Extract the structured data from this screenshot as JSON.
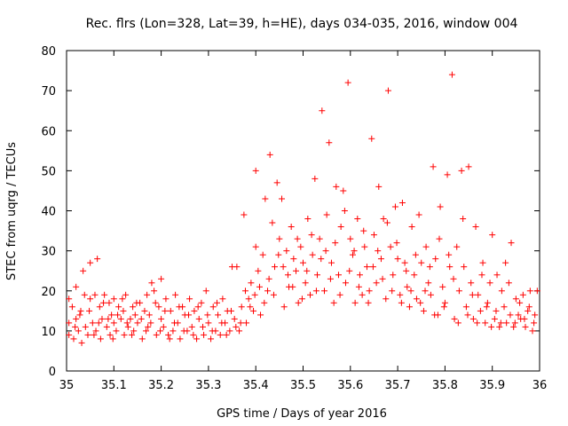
{
  "chart_data": {
    "type": "scatter",
    "title": "Rec. flrs (Lon=328, Lat=39, h=HE), days 034-035, 2016, window 004",
    "xlabel": "GPS time / Days of year 2016",
    "ylabel": "STEC from uqrg / TECUs",
    "xlim": [
      35,
      36
    ],
    "ylim": [
      0,
      80
    ],
    "xticks": [
      35,
      35.1,
      35.2,
      35.3,
      35.4,
      35.5,
      35.6,
      35.7,
      35.8,
      35.9,
      36
    ],
    "xtick_labels": [
      "35",
      "35.1",
      "35.2",
      "35.3",
      "35.4",
      "35.5",
      "35.6",
      "35.7",
      "35.8",
      "35.9",
      "36"
    ],
    "yticks": [
      0,
      10,
      20,
      30,
      40,
      50,
      60,
      70,
      80
    ],
    "ytick_labels": [
      "0",
      "10",
      "20",
      "30",
      "40",
      "50",
      "60",
      "70",
      "80"
    ],
    "marker": "plus",
    "color": "#ff0000",
    "grid": false,
    "series": [
      {
        "points": [
          [
            35.005,
            18
          ],
          [
            35.005,
            12
          ],
          [
            35.005,
            9
          ],
          [
            35.012,
            16
          ],
          [
            35.015,
            8
          ],
          [
            35.02,
            21
          ],
          [
            35.02,
            13
          ],
          [
            35.025,
            10
          ],
          [
            35.03,
            15
          ],
          [
            35.032,
            7
          ],
          [
            35.035,
            25
          ],
          [
            35.038,
            19
          ],
          [
            35.04,
            11
          ],
          [
            35.045,
            9
          ],
          [
            35.05,
            27
          ],
          [
            35.05,
            18
          ],
          [
            35.055,
            12
          ],
          [
            35.06,
            19
          ],
          [
            35.062,
            10
          ],
          [
            35.065,
            28
          ],
          [
            35.07,
            16
          ],
          [
            35.072,
            8
          ],
          [
            35.075,
            13
          ],
          [
            35.08,
            19
          ],
          [
            35.085,
            11
          ],
          [
            35.09,
            17
          ],
          [
            35.092,
            9
          ],
          [
            35.095,
            14
          ],
          [
            35.1,
            12
          ],
          [
            35.1,
            18
          ],
          [
            35.105,
            10
          ],
          [
            35.11,
            16
          ],
          [
            35.115,
            13
          ],
          [
            35.12,
            15
          ],
          [
            35.122,
            9
          ],
          [
            35.125,
            19
          ],
          [
            35.13,
            11
          ],
          [
            35.135,
            13
          ],
          [
            35.14,
            16
          ],
          [
            35.142,
            10
          ],
          [
            35.145,
            14
          ],
          [
            35.15,
            12
          ],
          [
            35.155,
            17
          ],
          [
            35.16,
            8
          ],
          [
            35.165,
            15
          ],
          [
            35.17,
            19
          ],
          [
            35.172,
            11
          ],
          [
            35.175,
            14
          ],
          [
            35.18,
            22
          ],
          [
            35.185,
            20
          ],
          [
            35.19,
            9
          ],
          [
            35.195,
            16
          ],
          [
            35.2,
            23
          ],
          [
            35.2,
            13
          ],
          [
            35.205,
            11
          ],
          [
            35.21,
            18
          ],
          [
            35.215,
            9
          ],
          [
            35.22,
            15
          ],
          [
            35.225,
            10
          ],
          [
            35.23,
            19
          ],
          [
            35.235,
            12
          ],
          [
            35.24,
            8
          ],
          [
            35.245,
            16
          ],
          [
            35.25,
            14
          ],
          [
            35.255,
            10
          ],
          [
            35.26,
            18
          ],
          [
            35.265,
            11
          ],
          [
            35.27,
            15
          ],
          [
            35.275,
            8
          ],
          [
            35.28,
            13
          ],
          [
            35.285,
            17
          ],
          [
            35.29,
            9
          ],
          [
            35.295,
            20
          ],
          [
            35.3,
            12
          ],
          [
            35.305,
            8
          ],
          [
            35.31,
            16
          ],
          [
            35.315,
            10
          ],
          [
            35.32,
            14
          ],
          [
            35.325,
            9
          ],
          [
            35.33,
            18
          ],
          [
            35.335,
            12
          ],
          [
            35.34,
            15
          ],
          [
            35.345,
            10
          ],
          [
            35.35,
            26
          ],
          [
            35.355,
            13
          ],
          [
            35.36,
            26
          ],
          [
            35.365,
            10
          ],
          [
            35.37,
            16
          ],
          [
            35.375,
            39
          ],
          [
            35.38,
            12
          ],
          [
            35.385,
            18
          ],
          [
            35.39,
            22
          ],
          [
            35.395,
            15
          ],
          [
            35.4,
            31
          ],
          [
            35.4,
            50
          ],
          [
            35.405,
            25
          ],
          [
            35.41,
            14
          ],
          [
            35.415,
            29
          ],
          [
            35.42,
            43
          ],
          [
            35.425,
            20
          ],
          [
            35.43,
            54
          ],
          [
            35.435,
            37
          ],
          [
            35.44,
            26
          ],
          [
            35.445,
            47
          ],
          [
            35.45,
            33
          ],
          [
            35.455,
            43
          ],
          [
            35.46,
            16
          ],
          [
            35.465,
            30
          ],
          [
            35.47,
            21
          ],
          [
            35.475,
            36
          ],
          [
            35.48,
            28
          ],
          [
            35.485,
            25
          ],
          [
            35.49,
            17
          ],
          [
            35.495,
            31
          ],
          [
            35.5,
            27
          ],
          [
            35.505,
            22
          ],
          [
            35.51,
            38
          ],
          [
            35.515,
            19
          ],
          [
            35.52,
            29
          ],
          [
            35.525,
            48
          ],
          [
            35.53,
            24
          ],
          [
            35.535,
            33
          ],
          [
            35.54,
            65
          ],
          [
            35.545,
            20
          ],
          [
            35.55,
            39
          ],
          [
            35.555,
            57
          ],
          [
            35.56,
            27
          ],
          [
            35.565,
            17
          ],
          [
            35.57,
            46
          ],
          [
            35.575,
            24
          ],
          [
            35.58,
            36
          ],
          [
            35.585,
            45
          ],
          [
            35.59,
            22
          ],
          [
            35.595,
            72
          ],
          [
            35.6,
            33
          ],
          [
            35.605,
            29
          ],
          [
            35.61,
            17
          ],
          [
            35.615,
            38
          ],
          [
            35.62,
            24
          ],
          [
            35.625,
            19
          ],
          [
            35.63,
            31
          ],
          [
            35.635,
            26
          ],
          [
            35.64,
            20
          ],
          [
            35.645,
            58
          ],
          [
            35.65,
            34
          ],
          [
            35.655,
            22
          ],
          [
            35.66,
            46
          ],
          [
            35.665,
            28
          ],
          [
            35.67,
            38
          ],
          [
            35.675,
            18
          ],
          [
            35.68,
            70
          ],
          [
            35.685,
            31
          ],
          [
            35.69,
            24
          ],
          [
            35.695,
            41
          ],
          [
            35.7,
            28
          ],
          [
            35.705,
            19
          ],
          [
            35.71,
            42
          ],
          [
            35.715,
            27
          ],
          [
            35.72,
            21
          ],
          [
            35.725,
            16
          ],
          [
            35.73,
            36
          ],
          [
            35.735,
            24
          ],
          [
            35.74,
            18
          ],
          [
            35.745,
            39
          ],
          [
            35.75,
            27
          ],
          [
            35.755,
            15
          ],
          [
            35.76,
            31
          ],
          [
            35.765,
            22
          ],
          [
            35.77,
            19
          ],
          [
            35.775,
            51
          ],
          [
            35.78,
            28
          ],
          [
            35.785,
            14
          ],
          [
            35.79,
            41
          ],
          [
            35.795,
            21
          ],
          [
            35.8,
            17
          ],
          [
            35.805,
            49
          ],
          [
            35.81,
            26
          ],
          [
            35.815,
            74
          ],
          [
            35.82,
            13
          ],
          [
            35.825,
            31
          ],
          [
            35.83,
            20
          ],
          [
            35.835,
            50
          ],
          [
            35.84,
            26
          ],
          [
            35.845,
            16
          ],
          [
            35.85,
            51
          ],
          [
            35.855,
            22
          ],
          [
            35.86,
            13
          ],
          [
            35.865,
            36
          ],
          [
            35.87,
            19
          ],
          [
            35.875,
            15
          ],
          [
            35.88,
            27
          ],
          [
            35.885,
            12
          ],
          [
            35.89,
            17
          ],
          [
            35.895,
            22
          ],
          [
            35.9,
            34
          ],
          [
            35.905,
            13
          ],
          [
            35.91,
            24
          ],
          [
            35.915,
            11
          ],
          [
            35.92,
            20
          ],
          [
            35.925,
            16
          ],
          [
            35.93,
            12
          ],
          [
            35.935,
            22
          ],
          [
            35.94,
            32
          ],
          [
            35.945,
            11
          ],
          [
            35.95,
            18
          ],
          [
            35.955,
            14
          ],
          [
            35.96,
            13
          ],
          [
            35.965,
            19
          ],
          [
            35.97,
            11
          ],
          [
            35.975,
            15
          ],
          [
            35.98,
            20
          ],
          [
            35.985,
            10
          ],
          [
            35.99,
            14
          ],
          [
            35.995,
            20
          ],
          [
            35.018,
            11
          ],
          [
            35.028,
            14
          ],
          [
            35.048,
            15
          ],
          [
            35.058,
            9
          ],
          [
            35.068,
            12
          ],
          [
            35.078,
            17
          ],
          [
            35.088,
            13
          ],
          [
            35.098,
            8
          ],
          [
            35.108,
            14
          ],
          [
            35.118,
            18
          ],
          [
            35.128,
            12
          ],
          [
            35.138,
            9
          ],
          [
            35.148,
            17
          ],
          [
            35.158,
            13
          ],
          [
            35.168,
            10
          ],
          [
            35.178,
            12
          ],
          [
            35.188,
            17
          ],
          [
            35.198,
            10
          ],
          [
            35.208,
            15
          ],
          [
            35.218,
            8
          ],
          [
            35.228,
            12
          ],
          [
            35.238,
            16
          ],
          [
            35.248,
            10
          ],
          [
            35.258,
            14
          ],
          [
            35.268,
            9
          ],
          [
            35.278,
            16
          ],
          [
            35.288,
            11
          ],
          [
            35.298,
            14
          ],
          [
            35.308,
            10
          ],
          [
            35.318,
            17
          ],
          [
            35.328,
            12
          ],
          [
            35.338,
            9
          ],
          [
            35.348,
            15
          ],
          [
            35.358,
            11
          ],
          [
            35.368,
            12
          ],
          [
            35.378,
            20
          ],
          [
            35.388,
            16
          ],
          [
            35.398,
            19
          ],
          [
            35.408,
            21
          ],
          [
            35.418,
            17
          ],
          [
            35.428,
            23
          ],
          [
            35.438,
            19
          ],
          [
            35.448,
            29
          ],
          [
            35.458,
            26
          ],
          [
            35.468,
            24
          ],
          [
            35.478,
            21
          ],
          [
            35.488,
            33
          ],
          [
            35.498,
            18
          ],
          [
            35.508,
            25
          ],
          [
            35.518,
            34
          ],
          [
            35.528,
            20
          ],
          [
            35.538,
            28
          ],
          [
            35.548,
            30
          ],
          [
            35.558,
            23
          ],
          [
            35.568,
            32
          ],
          [
            35.578,
            19
          ],
          [
            35.588,
            40
          ],
          [
            35.598,
            25
          ],
          [
            35.608,
            30
          ],
          [
            35.618,
            21
          ],
          [
            35.628,
            35
          ],
          [
            35.638,
            17
          ],
          [
            35.648,
            26
          ],
          [
            35.658,
            30
          ],
          [
            35.668,
            23
          ],
          [
            35.678,
            37
          ],
          [
            35.688,
            20
          ],
          [
            35.698,
            32
          ],
          [
            35.708,
            17
          ],
          [
            35.718,
            25
          ],
          [
            35.728,
            20
          ],
          [
            35.738,
            29
          ],
          [
            35.748,
            17
          ],
          [
            35.758,
            20
          ],
          [
            35.768,
            26
          ],
          [
            35.778,
            14
          ],
          [
            35.788,
            33
          ],
          [
            35.798,
            16
          ],
          [
            35.808,
            29
          ],
          [
            35.818,
            23
          ],
          [
            35.828,
            12
          ],
          [
            35.838,
            38
          ],
          [
            35.848,
            14
          ],
          [
            35.858,
            19
          ],
          [
            35.868,
            12
          ],
          [
            35.878,
            24
          ],
          [
            35.888,
            16
          ],
          [
            35.898,
            11
          ],
          [
            35.908,
            15
          ],
          [
            35.918,
            12
          ],
          [
            35.928,
            27
          ],
          [
            35.938,
            14
          ],
          [
            35.948,
            12
          ],
          [
            35.958,
            17
          ],
          [
            35.968,
            13
          ],
          [
            35.978,
            16
          ],
          [
            35.988,
            12
          ]
        ]
      }
    ]
  }
}
